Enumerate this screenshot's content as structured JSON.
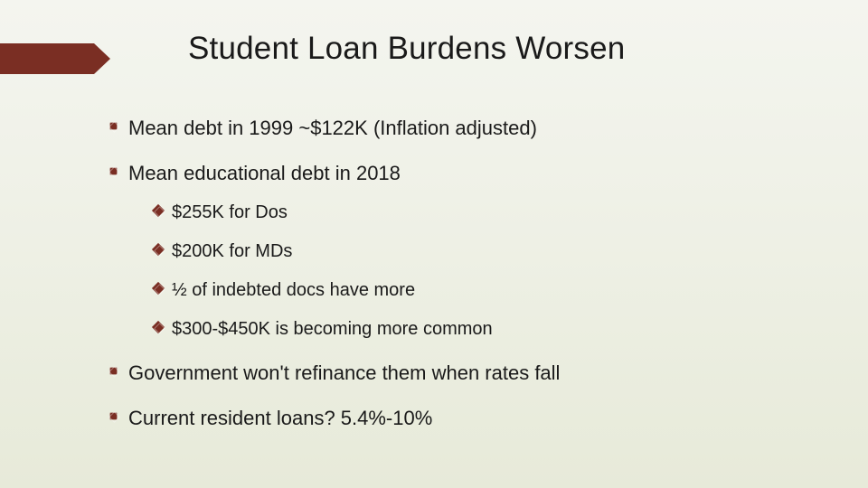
{
  "colors": {
    "accent": "#7a2e23",
    "bg_top": "#f4f5ef",
    "bg_bottom": "#e7ead9",
    "text": "#1a1a1a"
  },
  "typography": {
    "title_fontsize": 35,
    "lvl1_fontsize": 22,
    "lvl2_fontsize": 20,
    "font_family": "Arial"
  },
  "title": "Student Loan Burdens Worsen",
  "bullets": {
    "b0": "Mean debt in 1999 ~$122K (Inflation adjusted)",
    "b1": "Mean educational debt in 2018",
    "b1_sub": {
      "s0": "$255K for Dos",
      "s1": "$200K for MDs",
      "s2": "½ of indebted docs have more",
      "s3": "$300-$450K is becoming more common"
    },
    "b2": "Government won't refinance them when rates fall",
    "b3": "Current resident loans?  5.4%-10%"
  }
}
